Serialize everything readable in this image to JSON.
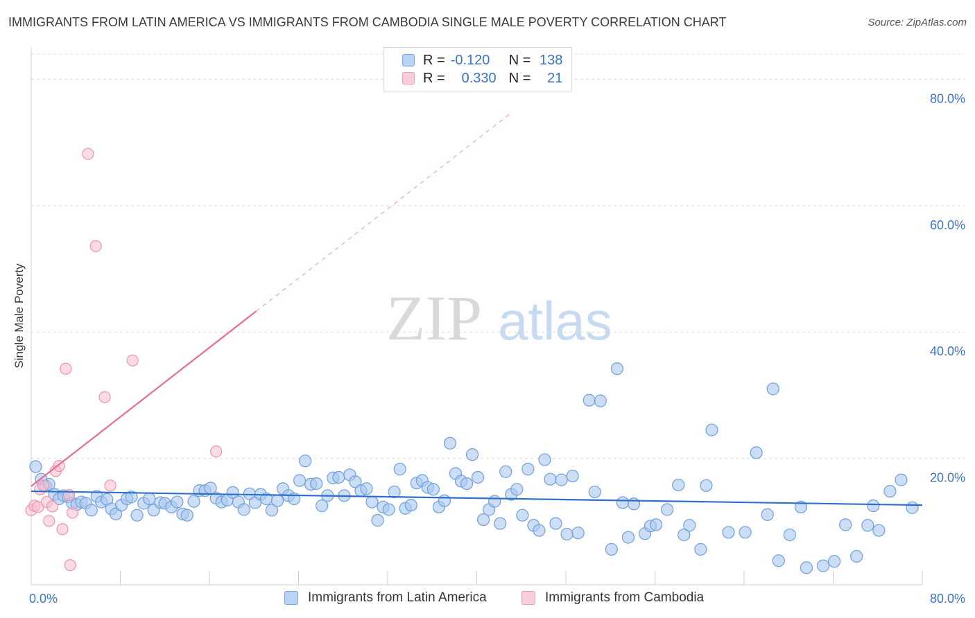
{
  "header": {
    "title": "IMMIGRANTS FROM LATIN AMERICA VS IMMIGRANTS FROM CAMBODIA SINGLE MALE POVERTY CORRELATION CHART",
    "source": "Source: ZipAtlas.com"
  },
  "watermark": {
    "zip": "ZIP",
    "atlas": "atlas"
  },
  "legend_top": {
    "rows": [
      {
        "r_label": "R =",
        "r_value": "-0.120",
        "n_label": "N =",
        "n_value": "138"
      },
      {
        "r_label": "R =",
        "r_value": "0.330",
        "n_label": "N =",
        "n_value": "21"
      }
    ]
  },
  "colors": {
    "blue_fill": "#a9c8f0",
    "blue_stroke": "#6f9fdc",
    "blue_line": "#2d6fcc",
    "pink_fill": "#f7c0d0",
    "pink_stroke": "#ee92ad",
    "pink_line": "#e56b93",
    "grid": "#dcdcdc",
    "tick_text": "#3b73c8"
  },
  "chart_data": {
    "type": "scatter",
    "title": "IMMIGRANTS FROM LATIN AMERICA VS IMMIGRANTS FROM CAMBODIA SINGLE MALE POVERTY CORRELATION CHART",
    "xlabel": "",
    "ylabel": "Single Male Poverty",
    "xlim": [
      0,
      80
    ],
    "ylim": [
      0,
      84
    ],
    "x_tick_labels": [
      "0.0%",
      "80.0%"
    ],
    "y_ticks": [
      20,
      40,
      60,
      80
    ],
    "y_tick_labels": [
      "20.0%",
      "40.0%",
      "60.0%",
      "80.0%"
    ],
    "grid": "horizontal dashed",
    "legend_position": "bottom",
    "series": [
      {
        "name": "Immigrants from Latin America",
        "color": "#a9c8f0",
        "trend": {
          "x": [
            0,
            80
          ],
          "y": [
            14.8,
            12.6
          ],
          "style": "solid"
        },
        "points": [
          [
            0.4,
            18.7
          ],
          [
            0.9,
            16.7
          ],
          [
            1.3,
            15.6
          ],
          [
            1.6,
            15.9
          ],
          [
            2.1,
            14.3
          ],
          [
            2.5,
            13.6
          ],
          [
            2.9,
            14.1
          ],
          [
            3.3,
            13.9
          ],
          [
            3.7,
            12.9
          ],
          [
            4.1,
            12.7
          ],
          [
            4.5,
            13.1
          ],
          [
            4.9,
            12.9
          ],
          [
            5.4,
            11.8
          ],
          [
            5.9,
            14.0
          ],
          [
            6.3,
            13.1
          ],
          [
            6.8,
            13.5
          ],
          [
            7.2,
            12.0
          ],
          [
            7.6,
            11.2
          ],
          [
            8.1,
            12.6
          ],
          [
            8.6,
            13.6
          ],
          [
            9.0,
            13.9
          ],
          [
            9.5,
            11.0
          ],
          [
            10.1,
            12.9
          ],
          [
            10.6,
            13.6
          ],
          [
            11.0,
            11.8
          ],
          [
            11.6,
            13.0
          ],
          [
            12.0,
            12.9
          ],
          [
            12.6,
            12.3
          ],
          [
            13.1,
            13.1
          ],
          [
            13.6,
            11.2
          ],
          [
            14.0,
            11.0
          ],
          [
            14.6,
            13.2
          ],
          [
            15.1,
            14.9
          ],
          [
            15.6,
            14.9
          ],
          [
            16.1,
            15.3
          ],
          [
            16.6,
            13.7
          ],
          [
            17.1,
            13.1
          ],
          [
            17.6,
            13.4
          ],
          [
            18.1,
            14.6
          ],
          [
            18.6,
            13.1
          ],
          [
            19.1,
            11.9
          ],
          [
            19.6,
            14.4
          ],
          [
            20.1,
            13.0
          ],
          [
            20.6,
            14.3
          ],
          [
            21.1,
            13.6
          ],
          [
            21.6,
            11.8
          ],
          [
            22.1,
            13.3
          ],
          [
            22.6,
            15.2
          ],
          [
            23.1,
            14.1
          ],
          [
            23.6,
            13.6
          ],
          [
            24.1,
            16.5
          ],
          [
            24.6,
            19.6
          ],
          [
            25.1,
            15.9
          ],
          [
            25.6,
            16.0
          ],
          [
            26.1,
            12.5
          ],
          [
            26.6,
            14.1
          ],
          [
            27.1,
            16.9
          ],
          [
            27.6,
            17.0
          ],
          [
            28.1,
            14.1
          ],
          [
            28.6,
            17.4
          ],
          [
            29.1,
            16.3
          ],
          [
            29.6,
            14.9
          ],
          [
            30.1,
            15.2
          ],
          [
            30.6,
            13.1
          ],
          [
            31.1,
            10.2
          ],
          [
            31.6,
            12.3
          ],
          [
            32.1,
            11.9
          ],
          [
            32.6,
            14.7
          ],
          [
            33.1,
            18.3
          ],
          [
            33.6,
            12.1
          ],
          [
            34.1,
            12.6
          ],
          [
            34.6,
            16.1
          ],
          [
            35.1,
            16.5
          ],
          [
            35.6,
            15.4
          ],
          [
            36.1,
            15.1
          ],
          [
            36.6,
            12.3
          ],
          [
            37.1,
            13.3
          ],
          [
            37.6,
            22.4
          ],
          [
            38.1,
            17.6
          ],
          [
            38.6,
            16.4
          ],
          [
            39.1,
            16.0
          ],
          [
            39.6,
            20.6
          ],
          [
            40.1,
            17.0
          ],
          [
            40.6,
            10.3
          ],
          [
            41.1,
            11.9
          ],
          [
            41.6,
            13.2
          ],
          [
            42.1,
            9.7
          ],
          [
            42.6,
            17.9
          ],
          [
            43.1,
            14.3
          ],
          [
            43.6,
            15.1
          ],
          [
            44.1,
            11.0
          ],
          [
            44.6,
            18.3
          ],
          [
            45.1,
            9.4
          ],
          [
            45.6,
            8.6
          ],
          [
            46.1,
            19.8
          ],
          [
            46.6,
            16.7
          ],
          [
            47.1,
            9.7
          ],
          [
            47.6,
            16.6
          ],
          [
            48.1,
            8.0
          ],
          [
            48.6,
            17.2
          ],
          [
            49.1,
            8.2
          ],
          [
            50.1,
            29.2
          ],
          [
            50.6,
            14.7
          ],
          [
            51.1,
            29.1
          ],
          [
            52.1,
            5.6
          ],
          [
            52.6,
            34.2
          ],
          [
            53.1,
            13.0
          ],
          [
            53.6,
            7.5
          ],
          [
            54.1,
            12.8
          ],
          [
            55.1,
            8.1
          ],
          [
            55.6,
            9.3
          ],
          [
            56.1,
            9.5
          ],
          [
            57.1,
            11.9
          ],
          [
            58.1,
            15.8
          ],
          [
            58.6,
            7.9
          ],
          [
            59.1,
            9.4
          ],
          [
            60.1,
            5.6
          ],
          [
            60.6,
            15.7
          ],
          [
            61.1,
            24.5
          ],
          [
            62.6,
            8.3
          ],
          [
            64.1,
            8.3
          ],
          [
            65.1,
            20.9
          ],
          [
            66.1,
            11.1
          ],
          [
            66.6,
            31.0
          ],
          [
            67.1,
            3.8
          ],
          [
            68.1,
            7.9
          ],
          [
            69.1,
            12.3
          ],
          [
            69.6,
            2.7
          ],
          [
            71.1,
            3.0
          ],
          [
            72.1,
            3.7
          ],
          [
            73.1,
            9.5
          ],
          [
            74.1,
            4.5
          ],
          [
            75.1,
            9.4
          ],
          [
            75.6,
            12.5
          ],
          [
            76.1,
            8.6
          ],
          [
            77.1,
            14.8
          ],
          [
            78.1,
            16.6
          ],
          [
            79.1,
            12.2
          ]
        ]
      },
      {
        "name": "Immigrants from Cambodia",
        "color": "#f7c0d0",
        "trend": {
          "x": [
            0,
            20.2
          ],
          "y": [
            15.6,
            43.3
          ],
          "style": "solid",
          "extension_to_x": 43,
          "extension_style": "dashed"
        },
        "points": [
          [
            0.0,
            11.8
          ],
          [
            0.3,
            12.5
          ],
          [
            0.6,
            12.3
          ],
          [
            0.8,
            15.1
          ],
          [
            1.1,
            15.7
          ],
          [
            1.4,
            13.1
          ],
          [
            1.6,
            10.1
          ],
          [
            1.9,
            12.4
          ],
          [
            2.2,
            18.0
          ],
          [
            2.5,
            18.8
          ],
          [
            2.8,
            8.8
          ],
          [
            3.1,
            34.2
          ],
          [
            3.4,
            14.2
          ],
          [
            3.7,
            11.4
          ],
          [
            3.5,
            3.1
          ],
          [
            5.1,
            68.2
          ],
          [
            5.8,
            53.6
          ],
          [
            6.6,
            29.7
          ],
          [
            7.1,
            15.7
          ],
          [
            9.1,
            35.5
          ],
          [
            16.6,
            21.1
          ]
        ]
      }
    ]
  },
  "bottom_legend": {
    "items": [
      {
        "label": "Immigrants from Latin America"
      },
      {
        "label": "Immigrants from Cambodia"
      }
    ]
  }
}
